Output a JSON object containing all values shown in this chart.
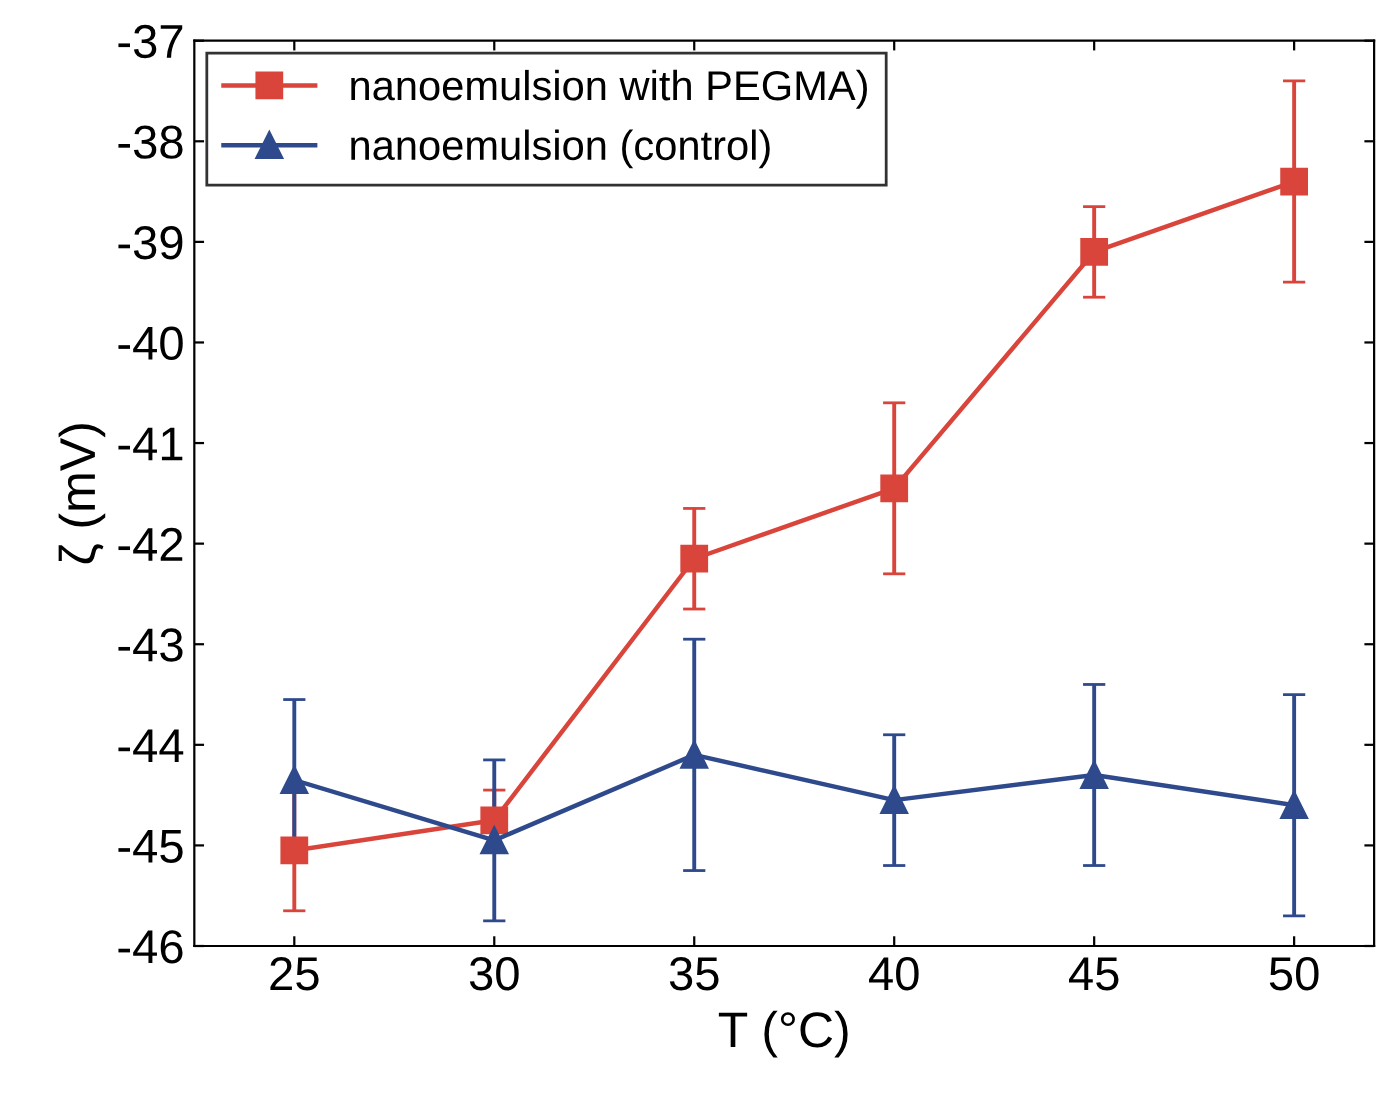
{
  "chart_data": {
    "type": "line",
    "xlabel": "T (°C)",
    "ylabel": "ζ (mV)",
    "x": [
      25,
      30,
      35,
      40,
      45,
      50
    ],
    "series": [
      {
        "name": "nanoemulsion with PEGMA)",
        "color": "#d9443b",
        "marker": "square",
        "values": [
          -45.05,
          -44.75,
          -42.15,
          -41.45,
          -39.1,
          -38.4
        ],
        "errors": [
          0.6,
          0.3,
          0.5,
          0.85,
          0.45,
          1.0
        ]
      },
      {
        "name": "nanoemulsion (control)",
        "color": "#2e4a8c",
        "marker": "triangle",
        "values": [
          -44.35,
          -44.95,
          -44.1,
          -44.55,
          -44.3,
          -44.6
        ],
        "errors": [
          0.8,
          0.8,
          1.15,
          0.65,
          0.9,
          1.1
        ]
      }
    ],
    "xlim": [
      22.5,
      52
    ],
    "xticks": [
      25,
      30,
      35,
      40,
      45,
      50
    ],
    "ylim": [
      -46,
      -37
    ],
    "yticks": [
      -46,
      -45,
      -44,
      -43,
      -42,
      -41,
      -40,
      -39,
      -38,
      -37
    ],
    "legend": "top left",
    "grid": false,
    "line_style": "solid"
  }
}
